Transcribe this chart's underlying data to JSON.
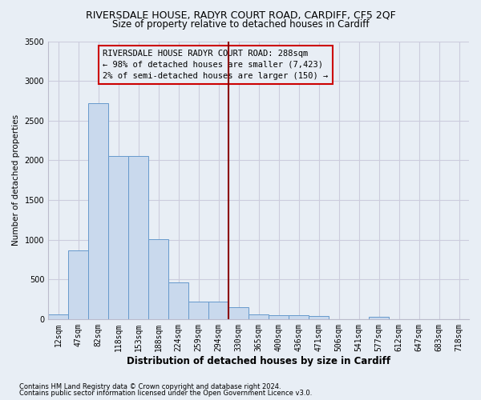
{
  "title1": "RIVERSDALE HOUSE, RADYR COURT ROAD, CARDIFF, CF5 2QF",
  "title2": "Size of property relative to detached houses in Cardiff",
  "xlabel": "Distribution of detached houses by size in Cardiff",
  "ylabel": "Number of detached properties",
  "bin_labels": [
    "12sqm",
    "47sqm",
    "82sqm",
    "118sqm",
    "153sqm",
    "188sqm",
    "224sqm",
    "259sqm",
    "294sqm",
    "330sqm",
    "365sqm",
    "400sqm",
    "436sqm",
    "471sqm",
    "506sqm",
    "541sqm",
    "577sqm",
    "612sqm",
    "647sqm",
    "683sqm",
    "718sqm"
  ],
  "bar_values": [
    60,
    860,
    2720,
    2050,
    2050,
    1010,
    460,
    225,
    215,
    145,
    55,
    50,
    45,
    35,
    0,
    0,
    30,
    0,
    0,
    0,
    0
  ],
  "bar_color": "#c9d9ed",
  "bar_edge_color": "#6699cc",
  "bar_width": 1.0,
  "vline_x_index": 8,
  "vline_color": "#8b0000",
  "annotation_text": "RIVERSDALE HOUSE RADYR COURT ROAD: 288sqm\n← 98% of detached houses are smaller (7,423)\n2% of semi-detached houses are larger (150) →",
  "annotation_box_edgecolor": "#cc0000",
  "annotation_bg_color": "#e8eef5",
  "annotation_text_color": "#000000",
  "ylim": [
    0,
    3500
  ],
  "yticks": [
    0,
    500,
    1000,
    1500,
    2000,
    2500,
    3000,
    3500
  ],
  "footer1": "Contains HM Land Registry data © Crown copyright and database right 2024.",
  "footer2": "Contains public sector information licensed under the Open Government Licence v3.0.",
  "bg_color": "#e8eef5",
  "grid_color": "#ccccdd",
  "title1_fontsize": 9,
  "title2_fontsize": 8.5,
  "xlabel_fontsize": 8.5,
  "ylabel_fontsize": 7.5,
  "tick_fontsize": 7,
  "annot_fontsize": 7.5
}
